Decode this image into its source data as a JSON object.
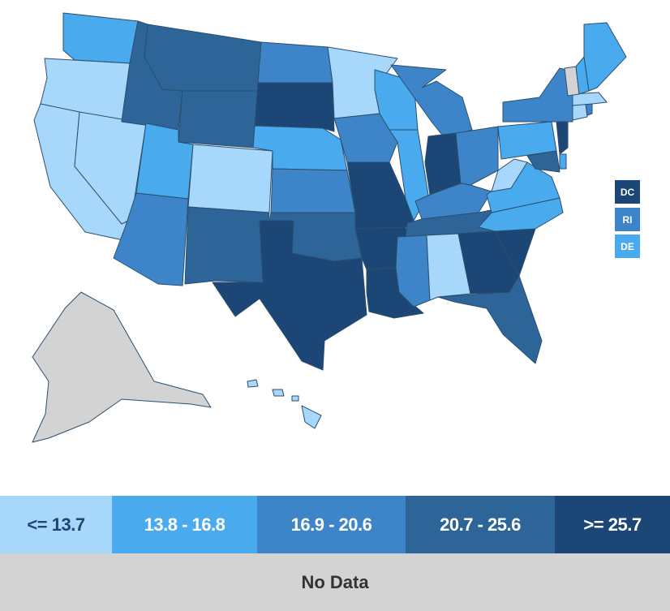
{
  "colors": {
    "bin1": "#a7d8fb",
    "bin2": "#4aaaee",
    "bin3": "#3d85c8",
    "bin4": "#2e6599",
    "bin5": "#1b4676",
    "no_data": "#d3d3d3",
    "no_data_text": "#333333",
    "border": "#2b4f6e"
  },
  "legend": {
    "bins": [
      {
        "label": "<= 13.7",
        "color": "#a7d8fb",
        "text_color": "#1b4676"
      },
      {
        "label": "13.8 - 16.8",
        "color": "#4aaaee",
        "text_color": "#ffffff"
      },
      {
        "label": "16.9 - 20.6",
        "color": "#3d85c8",
        "text_color": "#ffffff"
      },
      {
        "label": "20.7 - 25.6",
        "color": "#2e6599",
        "text_color": "#ffffff"
      },
      {
        "label": ">= 25.7",
        "color": "#1b4676",
        "text_color": "#ffffff"
      }
    ],
    "no_data_label": "No Data"
  },
  "small_states": [
    {
      "label": "DC",
      "bin": 5
    },
    {
      "label": "RI",
      "bin": 3
    },
    {
      "label": "DE",
      "bin": 2
    }
  ],
  "states_bins": {
    "WA": 2,
    "OR": 1,
    "CA": 1,
    "NV": 1,
    "ID": 4,
    "MT": 4,
    "WY": 4,
    "UT": 2,
    "AZ": 3,
    "CO": 1,
    "NM": 4,
    "ND": 3,
    "SD": 5,
    "NE": 2,
    "KS": 3,
    "OK": 4,
    "TX": 5,
    "MN": 1,
    "IA": 3,
    "MO": 5,
    "AR": 5,
    "LA": 5,
    "WI": 2,
    "IL": 2,
    "MI": 3,
    "IN": 5,
    "OH": 3,
    "KY": 3,
    "TN": 4,
    "MS": 3,
    "AL": 1,
    "GA": 5,
    "FL": 4,
    "SC": 5,
    "NC": 2,
    "VA": 2,
    "WV": 1,
    "PA": 2,
    "NY": 3,
    "NJ": 5,
    "MD": 4,
    "DE": 2,
    "CT": 1,
    "RI": 3,
    "MA": 1,
    "VT": 0,
    "NH": 2,
    "ME": 2,
    "AK": 0,
    "HI": 1
  }
}
